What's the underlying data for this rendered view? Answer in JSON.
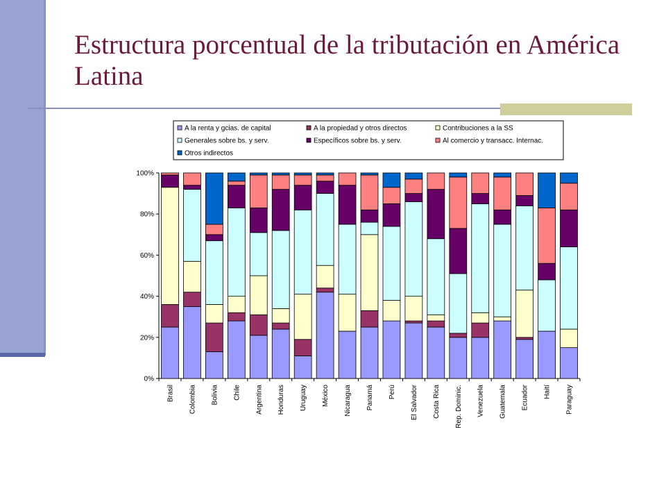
{
  "slide": {
    "title": "Estructura porcentual de la tributación en América Latina"
  },
  "chart_data": {
    "type": "bar",
    "stacked": true,
    "percent": true,
    "title": "",
    "xlabel": "",
    "ylabel": "",
    "ylim": [
      0,
      100
    ],
    "yticks": [
      "0%",
      "20%",
      "40%",
      "60%",
      "80%",
      "100%"
    ],
    "legend_position": "top",
    "categories": [
      "Brasil",
      "Colombia",
      "Bolivia",
      "Chile",
      "Argentina",
      "Honduras",
      "Uruguay",
      "México",
      "Nicaragua",
      "Panamá",
      "Perú",
      "El Salvador",
      "Costa Rica",
      "Rep. Dominic.",
      "Venezuela",
      "Guatemala",
      "Ecuador",
      "Haití",
      "Paraguay"
    ],
    "series": [
      {
        "name": "A la renta y gcias. de capital",
        "color": "#9999ff",
        "values": [
          25,
          35,
          13,
          28,
          21,
          24,
          11,
          42,
          23,
          25,
          28,
          27,
          25,
          20,
          20,
          28,
          19,
          23,
          15
        ]
      },
      {
        "name": "A la propiedad y otros directos",
        "color": "#993366",
        "values": [
          11,
          7,
          14,
          4,
          10,
          3,
          8,
          2,
          0,
          8,
          0,
          1,
          3,
          2,
          7,
          0,
          1,
          0,
          0
        ]
      },
      {
        "name": "Contribuciones a la SS",
        "color": "#ffffcc",
        "values": [
          57,
          15,
          9,
          8,
          19,
          7,
          22,
          11,
          18,
          37,
          10,
          12,
          3,
          0,
          5,
          2,
          23,
          0,
          9
        ]
      },
      {
        "name": "Generales sobre bs. y serv.",
        "color": "#ccffff",
        "values": [
          0,
          35,
          31,
          43,
          21,
          38,
          41,
          35,
          34,
          6,
          36,
          46,
          37,
          29,
          53,
          45,
          41,
          25,
          40
        ]
      },
      {
        "name": "Específicos sobre bs. y serv.",
        "color": "#660066",
        "values": [
          6,
          2,
          3,
          11,
          12,
          20,
          12,
          6,
          19,
          6,
          11,
          4,
          24,
          22,
          5,
          7,
          5,
          8,
          18
        ]
      },
      {
        "name": "Al comercio y transacc. Internac.",
        "color": "#ff8080",
        "values": [
          1,
          6,
          5,
          2,
          16,
          7,
          5,
          3,
          6,
          17,
          8,
          7,
          8,
          25,
          10,
          16,
          11,
          27,
          13
        ]
      },
      {
        "name": "Otros indirectos",
        "color": "#0066cc",
        "values": [
          0,
          0,
          25,
          4,
          1,
          1,
          1,
          1,
          0,
          1,
          7,
          3,
          0,
          2,
          0,
          2,
          0,
          17,
          5
        ]
      }
    ]
  }
}
